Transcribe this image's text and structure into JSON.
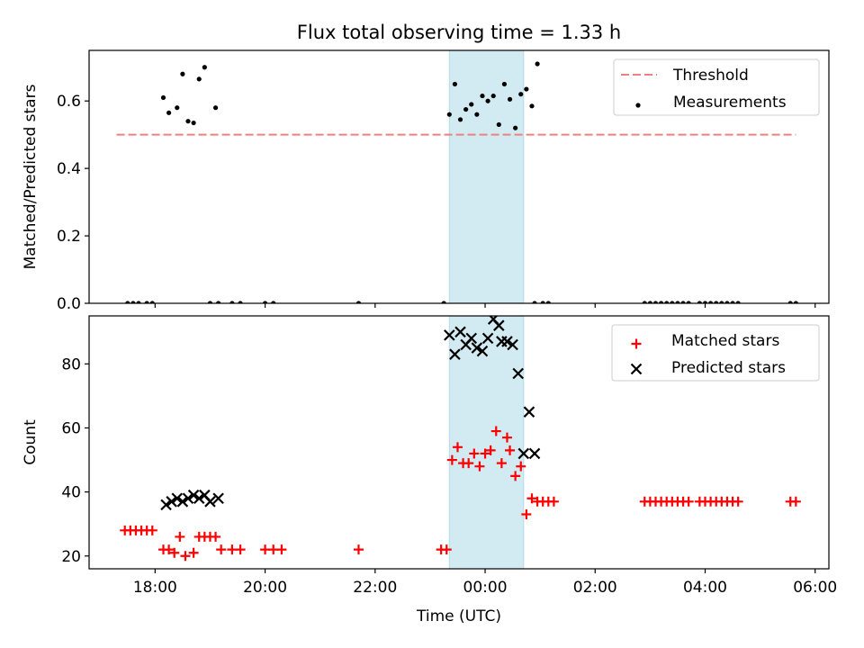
{
  "figure": {
    "title": "Flux total observing time = 1.33 h"
  },
  "chart_data": [
    {
      "panel": "top",
      "type": "scatter",
      "xlabel": "",
      "ylabel": "Matched/Predicted stars",
      "x_unit": "hours since 00:00 UTC (negative = previous day)",
      "xlim": [
        -7.2,
        6.25
      ],
      "ylim": [
        0,
        0.75
      ],
      "y_ticks": [
        0.0,
        0.2,
        0.4,
        0.6
      ],
      "y_tick_labels": [
        "0.0",
        "0.2",
        "0.4",
        "0.6"
      ],
      "x_ticks": [
        -6,
        -4,
        -2,
        0,
        2,
        4,
        6
      ],
      "x_tick_labels": [
        "",
        "",
        "",
        "",
        "",
        "",
        ""
      ],
      "shaded_span": {
        "x0": -0.65,
        "x1": 0.7,
        "color": "#add8e6"
      },
      "legend": {
        "position": "top-right",
        "entries": [
          "Threshold",
          "Measurements"
        ]
      },
      "threshold": {
        "name": "Threshold",
        "y": 0.5,
        "x_range": [
          -6.7,
          5.65
        ],
        "color": "#f08080"
      },
      "series": [
        {
          "name": "Measurements",
          "marker": "dot",
          "color": "#000000",
          "points": [
            [
              -6.5,
              0
            ],
            [
              -6.4,
              0
            ],
            [
              -6.3,
              0
            ],
            [
              -6.15,
              0
            ],
            [
              -6.05,
              0
            ],
            [
              -5.85,
              0.61
            ],
            [
              -5.75,
              0.565
            ],
            [
              -5.6,
              0.58
            ],
            [
              -5.5,
              0.68
            ],
            [
              -5.4,
              0.54
            ],
            [
              -5.3,
              0.535
            ],
            [
              -5.2,
              0.665
            ],
            [
              -5.1,
              0.7
            ],
            [
              -4.9,
              0.58
            ],
            [
              -5.0,
              0
            ],
            [
              -4.85,
              0
            ],
            [
              -4.6,
              0
            ],
            [
              -4.45,
              0
            ],
            [
              -4.0,
              0
            ],
            [
              -3.85,
              0
            ],
            [
              -2.3,
              0
            ],
            [
              -0.75,
              0
            ],
            [
              -0.65,
              0.56
            ],
            [
              -0.55,
              0.65
            ],
            [
              -0.45,
              0.545
            ],
            [
              -0.35,
              0.575
            ],
            [
              -0.25,
              0.59
            ],
            [
              -0.15,
              0.56
            ],
            [
              -0.05,
              0.615
            ],
            [
              0.05,
              0.6
            ],
            [
              0.15,
              0.615
            ],
            [
              0.25,
              0.53
            ],
            [
              0.35,
              0.65
            ],
            [
              0.45,
              0.605
            ],
            [
              0.55,
              0.52
            ],
            [
              0.65,
              0.62
            ],
            [
              0.75,
              0.635
            ],
            [
              0.85,
              0.585
            ],
            [
              0.95,
              0.71
            ],
            [
              0.9,
              0
            ],
            [
              1.05,
              0
            ],
            [
              1.15,
              0
            ],
            [
              2.9,
              0
            ],
            [
              3.0,
              0
            ],
            [
              3.1,
              0
            ],
            [
              3.2,
              0
            ],
            [
              3.3,
              0
            ],
            [
              3.4,
              0
            ],
            [
              3.5,
              0
            ],
            [
              3.6,
              0
            ],
            [
              3.7,
              0
            ],
            [
              3.9,
              0
            ],
            [
              4.0,
              0
            ],
            [
              4.1,
              0
            ],
            [
              4.2,
              0
            ],
            [
              4.3,
              0
            ],
            [
              4.4,
              0
            ],
            [
              4.5,
              0
            ],
            [
              4.6,
              0
            ],
            [
              5.55,
              0
            ],
            [
              5.65,
              0
            ]
          ]
        }
      ]
    },
    {
      "panel": "bottom",
      "type": "scatter",
      "xlabel": "Time (UTC)",
      "ylabel": "Count",
      "x_unit": "hours since 00:00 UTC (negative = previous day)",
      "xlim": [
        -7.2,
        6.25
      ],
      "ylim": [
        16,
        95
      ],
      "y_ticks": [
        20,
        40,
        60,
        80
      ],
      "y_tick_labels": [
        "20",
        "40",
        "60",
        "80"
      ],
      "x_ticks": [
        -6,
        -4,
        -2,
        0,
        2,
        4,
        6
      ],
      "x_tick_labels": [
        "18:00",
        "20:00",
        "22:00",
        "00:00",
        "02:00",
        "04:00",
        "06:00"
      ],
      "shaded_span": {
        "x0": -0.65,
        "x1": 0.7,
        "color": "#add8e6"
      },
      "legend": {
        "position": "top-right",
        "entries": [
          "Matched stars",
          "Predicted stars"
        ]
      },
      "series": [
        {
          "name": "Matched stars",
          "marker": "plus",
          "color": "#ff0000",
          "points": [
            [
              -6.55,
              28
            ],
            [
              -6.45,
              28
            ],
            [
              -6.35,
              28
            ],
            [
              -6.25,
              28
            ],
            [
              -6.15,
              28
            ],
            [
              -6.05,
              28
            ],
            [
              -5.85,
              22
            ],
            [
              -5.75,
              22
            ],
            [
              -5.65,
              21
            ],
            [
              -5.55,
              26
            ],
            [
              -5.45,
              20
            ],
            [
              -5.3,
              21
            ],
            [
              -5.2,
              26
            ],
            [
              -5.1,
              26
            ],
            [
              -5.0,
              26
            ],
            [
              -4.9,
              26
            ],
            [
              -4.8,
              22
            ],
            [
              -4.6,
              22
            ],
            [
              -4.45,
              22
            ],
            [
              -4.0,
              22
            ],
            [
              -3.85,
              22
            ],
            [
              -3.7,
              22
            ],
            [
              -2.3,
              22
            ],
            [
              -0.8,
              22
            ],
            [
              -0.7,
              22
            ],
            [
              -0.6,
              50
            ],
            [
              -0.5,
              54
            ],
            [
              -0.4,
              49
            ],
            [
              -0.3,
              49
            ],
            [
              -0.2,
              52
            ],
            [
              -0.1,
              48
            ],
            [
              0.0,
              52
            ],
            [
              0.1,
              53
            ],
            [
              0.2,
              59
            ],
            [
              0.3,
              49
            ],
            [
              0.4,
              57
            ],
            [
              0.45,
              53
            ],
            [
              0.55,
              45
            ],
            [
              0.65,
              48
            ],
            [
              0.75,
              33
            ],
            [
              0.85,
              38
            ],
            [
              0.95,
              37
            ],
            [
              1.05,
              37
            ],
            [
              1.15,
              37
            ],
            [
              1.25,
              37
            ],
            [
              2.9,
              37
            ],
            [
              3.0,
              37
            ],
            [
              3.1,
              37
            ],
            [
              3.2,
              37
            ],
            [
              3.3,
              37
            ],
            [
              3.4,
              37
            ],
            [
              3.5,
              37
            ],
            [
              3.6,
              37
            ],
            [
              3.7,
              37
            ],
            [
              3.9,
              37
            ],
            [
              4.0,
              37
            ],
            [
              4.1,
              37
            ],
            [
              4.2,
              37
            ],
            [
              4.3,
              37
            ],
            [
              4.4,
              37
            ],
            [
              4.5,
              37
            ],
            [
              4.6,
              37
            ],
            [
              5.55,
              37
            ],
            [
              5.65,
              37
            ]
          ]
        },
        {
          "name": "Predicted stars",
          "marker": "x",
          "color": "#000000",
          "points": [
            [
              -5.8,
              36
            ],
            [
              -5.7,
              37
            ],
            [
              -5.6,
              38
            ],
            [
              -5.5,
              37
            ],
            [
              -5.4,
              38
            ],
            [
              -5.3,
              39
            ],
            [
              -5.2,
              38
            ],
            [
              -5.1,
              39
            ],
            [
              -5.0,
              37
            ],
            [
              -4.85,
              38
            ],
            [
              -0.65,
              89
            ],
            [
              -0.55,
              83
            ],
            [
              -0.45,
              90
            ],
            [
              -0.35,
              86
            ],
            [
              -0.25,
              88
            ],
            [
              -0.15,
              85
            ],
            [
              -0.05,
              84
            ],
            [
              0.05,
              88
            ],
            [
              0.15,
              94
            ],
            [
              0.25,
              92
            ],
            [
              0.3,
              87
            ],
            [
              0.4,
              87
            ],
            [
              0.5,
              86
            ],
            [
              0.6,
              77
            ],
            [
              0.7,
              52
            ],
            [
              0.8,
              65
            ],
            [
              0.9,
              52
            ]
          ]
        }
      ]
    }
  ]
}
